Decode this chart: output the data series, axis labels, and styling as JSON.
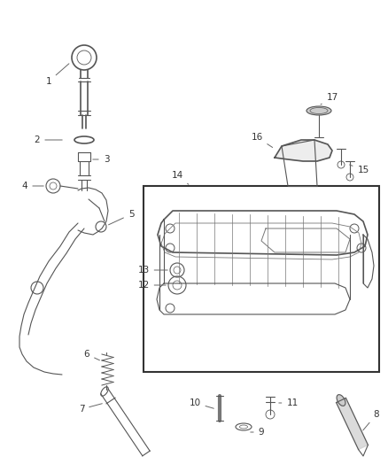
{
  "bg_color": "#ffffff",
  "fig_width": 4.38,
  "fig_height": 5.33,
  "dpi": 100,
  "line_color": "#555555",
  "label_color": "#333333",
  "box_color": "#333333"
}
